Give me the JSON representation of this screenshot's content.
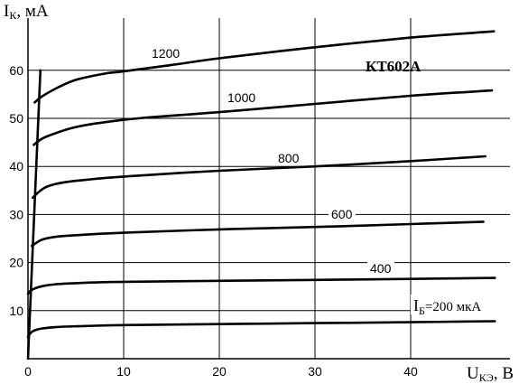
{
  "chart_data": {
    "type": "line",
    "title": "КТ602А",
    "ylabel": {
      "main": "I",
      "sub": "К",
      "rest": ", мА"
    },
    "xlabel": {
      "main": "U",
      "sub": "КЭ",
      "rest": ", В"
    },
    "xlim": [
      0,
      50
    ],
    "ylim": [
      0,
      67
    ],
    "x_ticks": [
      0,
      10,
      20,
      30,
      40
    ],
    "y_ticks": [
      10,
      20,
      30,
      40,
      50,
      60
    ],
    "grid": true,
    "base_current_label": {
      "main": "I",
      "sub": "Б",
      "rest": "=200 мкА"
    },
    "series": [
      {
        "name": "200 мкА",
        "label": "",
        "x": [
          0,
          0.3,
          0.7,
          1.5,
          3,
          6,
          10,
          20,
          30,
          40,
          48.8
        ],
        "y": [
          4.5,
          5.4,
          5.9,
          6.3,
          6.6,
          6.8,
          7.0,
          7.2,
          7.4,
          7.6,
          7.8
        ]
      },
      {
        "name": "400 мкА",
        "label": "400",
        "x": [
          0,
          0.3,
          0.7,
          1.5,
          3,
          6,
          10,
          20,
          30,
          40,
          48.8
        ],
        "y": [
          13.5,
          14.2,
          14.6,
          15.1,
          15.5,
          15.8,
          16.0,
          16.2,
          16.4,
          16.6,
          16.8
        ]
      },
      {
        "name": "600 мкА",
        "label": "600",
        "x": [
          0.4,
          0.8,
          1.5,
          3,
          6,
          10,
          20,
          30,
          40,
          47.6
        ],
        "y": [
          23.5,
          24.0,
          24.8,
          25.4,
          25.8,
          26.2,
          26.9,
          27.4,
          28.0,
          28.5
        ]
      },
      {
        "name": "800 мкА",
        "label": "800",
        "x": [
          0.5,
          1.2,
          2,
          3.5,
          6,
          10,
          20,
          30,
          40,
          47.8
        ],
        "y": [
          33.5,
          34.8,
          35.8,
          36.6,
          37.2,
          37.9,
          39.1,
          40.0,
          41.1,
          42.1
        ]
      },
      {
        "name": "1000 мкА",
        "label": "1000",
        "x": [
          0.6,
          1.5,
          3,
          5,
          8,
          12,
          20,
          30,
          40,
          48.5
        ],
        "y": [
          44.5,
          45.8,
          47.0,
          48.2,
          49.2,
          50.1,
          51.3,
          53.0,
          54.7,
          55.8
        ]
      },
      {
        "name": "1200 мкА",
        "label": "1200",
        "x": [
          0.7,
          1.5,
          3,
          5,
          8,
          10,
          15,
          20,
          30,
          40,
          48.7
        ],
        "y": [
          53.3,
          54.6,
          56.3,
          58.0,
          59.3,
          59.8,
          61.1,
          62.5,
          64.8,
          66.8,
          68.1
        ]
      }
    ],
    "saturation_line": {
      "x": [
        0,
        1.3
      ],
      "y": [
        0,
        60
      ]
    }
  }
}
